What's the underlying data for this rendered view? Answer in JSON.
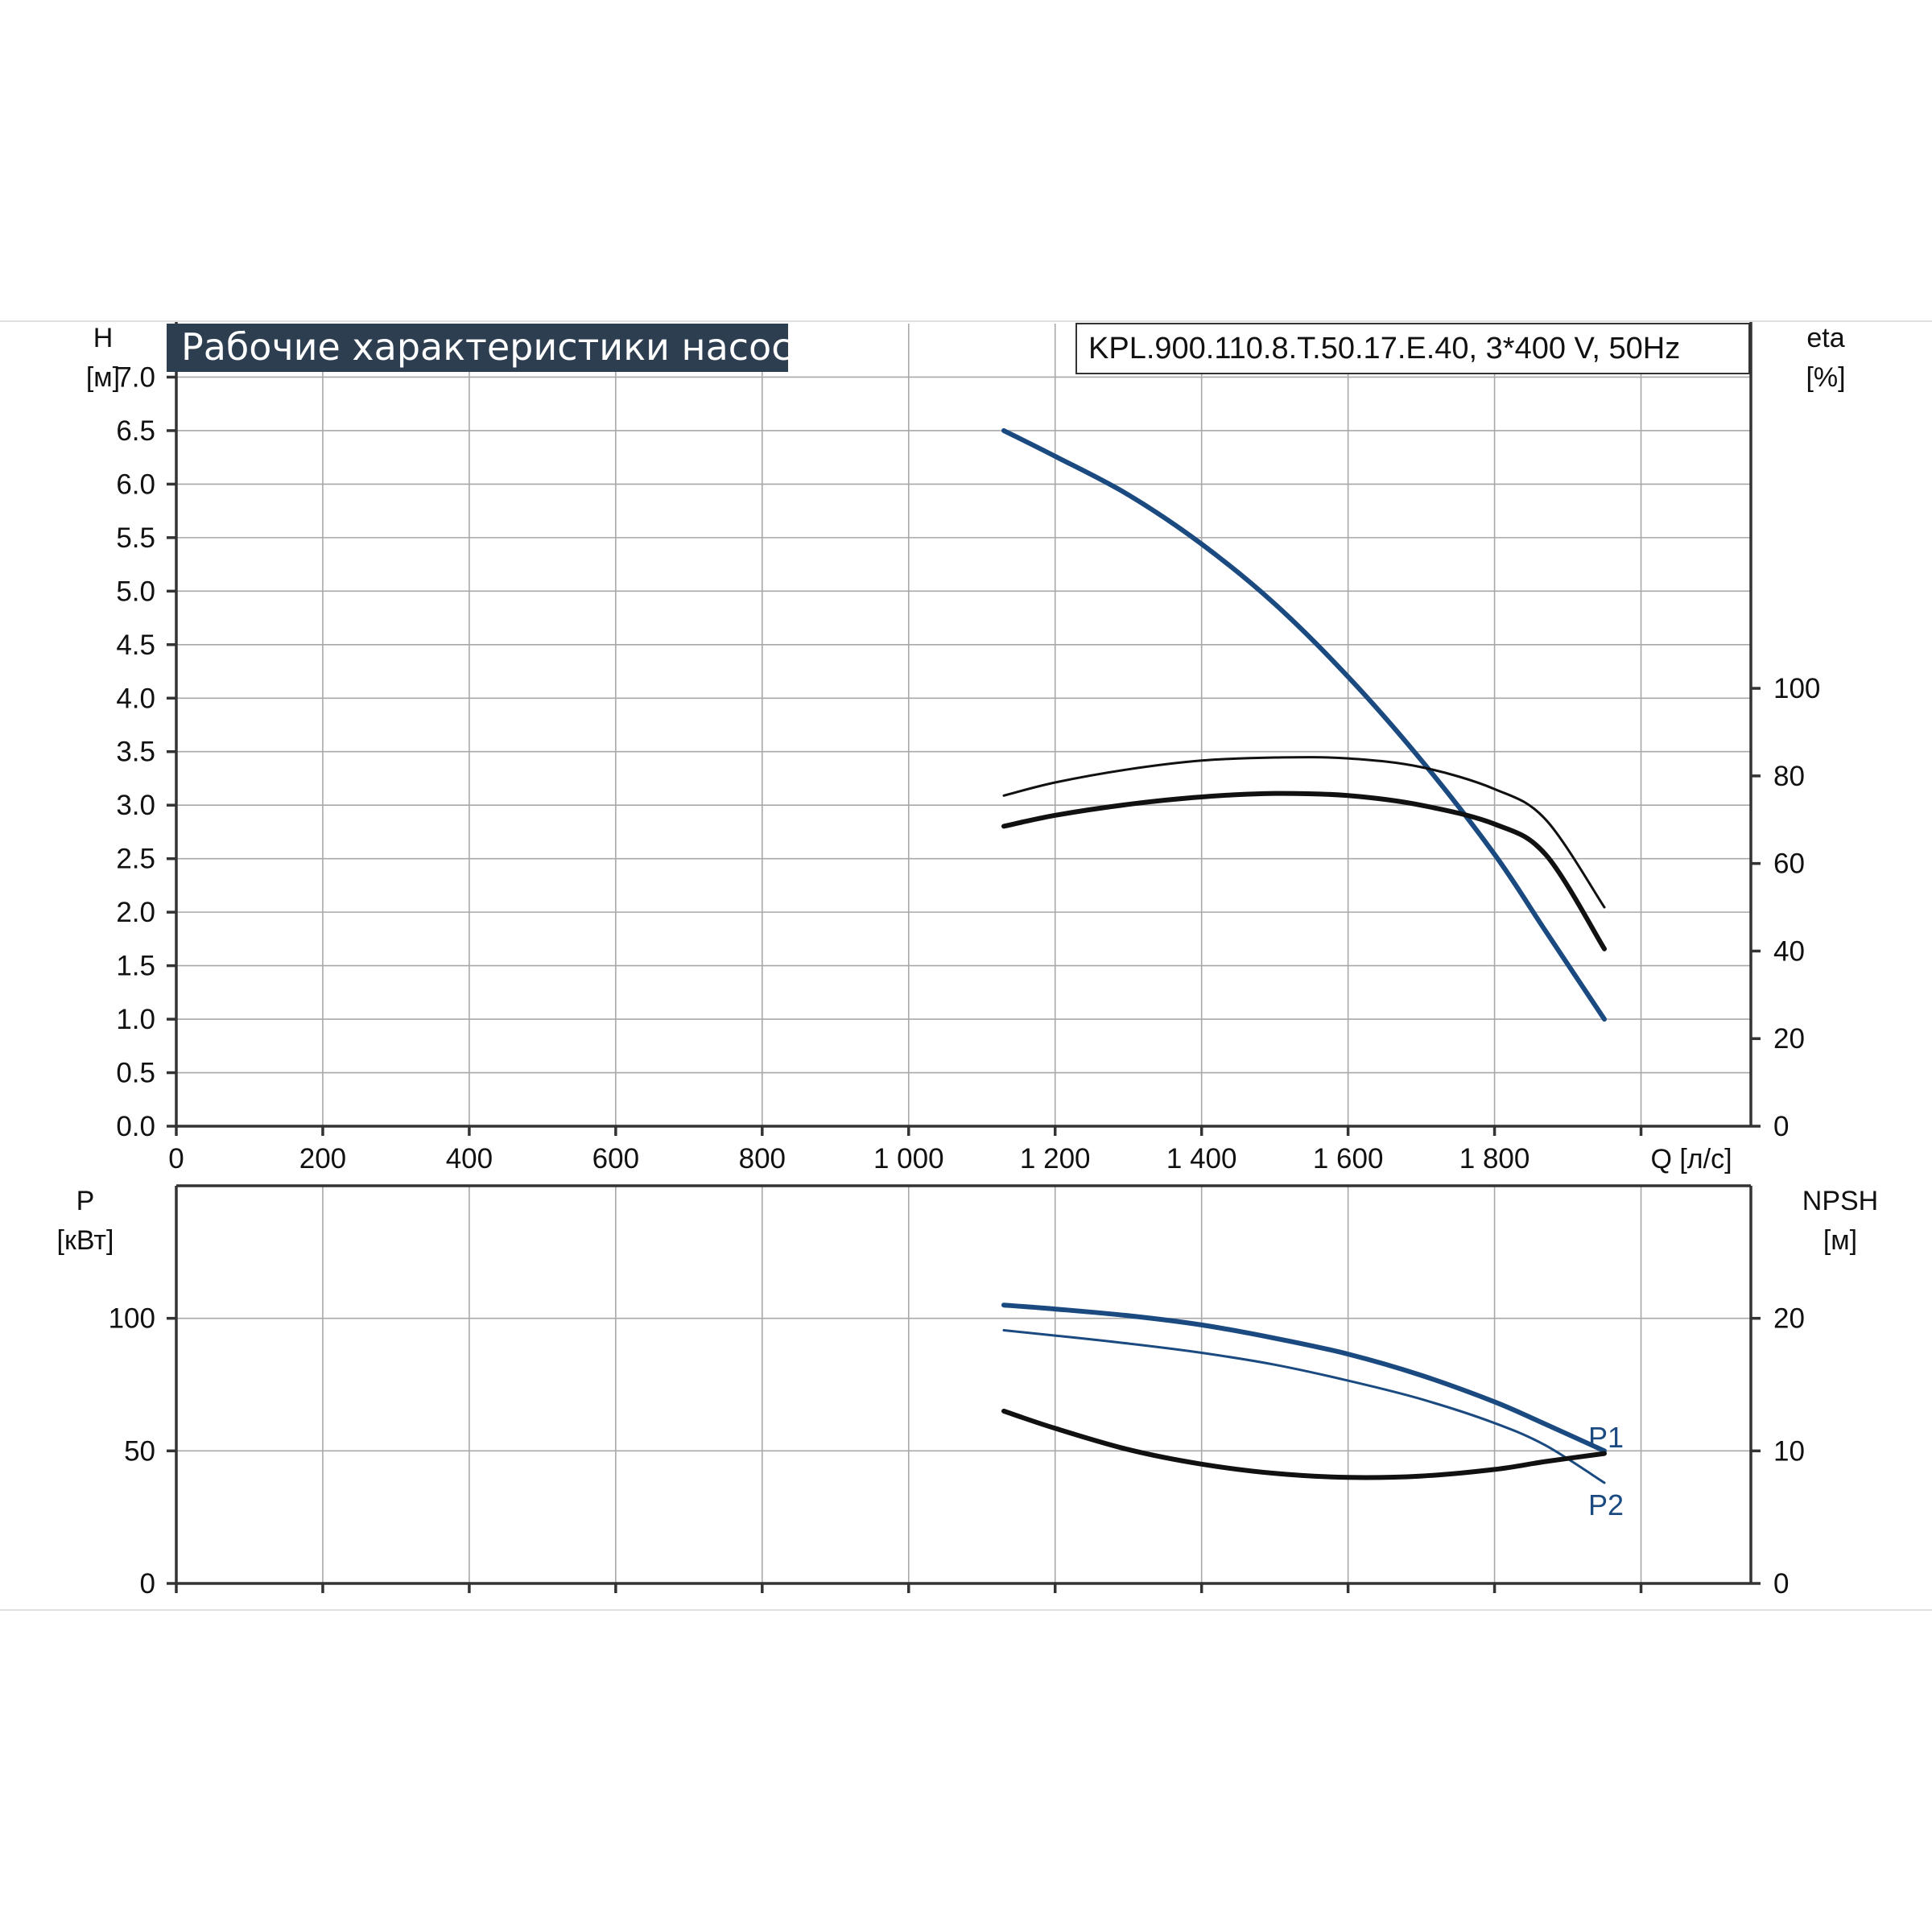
{
  "chart_data": [
    {
      "type": "line",
      "title": "Рабочие характеристики насоса",
      "subtitle": "KPL.900.110.8.T.50.17.E.40, 3*400 V, 50Hz",
      "xlabel": "Q [л/с]",
      "x_ticks": [
        "0",
        "200",
        "400",
        "600",
        "800",
        "1 000",
        "1 200",
        "1 400",
        "1 600",
        "1 800"
      ],
      "xlim": [
        0,
        2150
      ],
      "ylabel_left": {
        "name": "H",
        "unit": "[м]"
      },
      "ylim_left": [
        0,
        7.5
      ],
      "y_left_ticks": [
        "0.0",
        "0.5",
        "1.0",
        "1.5",
        "2.0",
        "2.5",
        "3.0",
        "3.5",
        "4.0",
        "4.5",
        "5.0",
        "5.5",
        "6.0",
        "6.5",
        "7.0"
      ],
      "ylabel_right": {
        "name": "eta",
        "unit": "[%]"
      },
      "ylim_right": [
        0,
        183.3
      ],
      "y_right_ticks": [
        "0",
        "20",
        "40",
        "60",
        "80",
        "100"
      ],
      "grid": true,
      "series": [
        {
          "axis": "left",
          "color": "#1a4a80",
          "width": 6,
          "points": [
            [
              1130,
              6.5
            ],
            [
              1200,
              6.26
            ],
            [
              1300,
              5.9
            ],
            [
              1400,
              5.44
            ],
            [
              1500,
              4.88
            ],
            [
              1600,
              4.2
            ],
            [
              1700,
              3.42
            ],
            [
              1800,
              2.54
            ],
            [
              1870,
              1.82
            ],
            [
              1950,
              1.0
            ]
          ]
        },
        {
          "axis": "right",
          "color": "#111111",
          "width": 3,
          "points": [
            [
              1130,
              75.5
            ],
            [
              1200,
              78.5
            ],
            [
              1300,
              81.5
            ],
            [
              1400,
              83.5
            ],
            [
              1500,
              84.2
            ],
            [
              1600,
              84.0
            ],
            [
              1700,
              82.0
            ],
            [
              1800,
              77.0
            ],
            [
              1870,
              70.0
            ],
            [
              1950,
              50.0
            ]
          ]
        },
        {
          "axis": "right",
          "color": "#111111",
          "width": 6,
          "points": [
            [
              1130,
              68.5
            ],
            [
              1200,
              71.0
            ],
            [
              1300,
              73.5
            ],
            [
              1400,
              75.2
            ],
            [
              1500,
              76.0
            ],
            [
              1600,
              75.5
            ],
            [
              1700,
              73.3
            ],
            [
              1800,
              69.0
            ],
            [
              1870,
              62.0
            ],
            [
              1950,
              40.5
            ]
          ]
        }
      ]
    },
    {
      "type": "line",
      "xlim": [
        0,
        2150
      ],
      "ylabel_left": {
        "name": "P",
        "unit": "[кВт]"
      },
      "ylim_left": [
        0,
        150
      ],
      "y_left_ticks": [
        "0",
        "50",
        "100"
      ],
      "ylabel_right": {
        "name": "NPSH",
        "unit": "[м]"
      },
      "ylim_right": [
        0,
        30
      ],
      "y_right_ticks": [
        "0",
        "10",
        "20"
      ],
      "grid": true,
      "series": [
        {
          "name": "P1",
          "axis": "left",
          "color": "#1a4a80",
          "width": 6,
          "points": [
            [
              1130,
              105
            ],
            [
              1200,
              103.5
            ],
            [
              1300,
              101
            ],
            [
              1400,
              97.5
            ],
            [
              1500,
              92.5
            ],
            [
              1600,
              86.5
            ],
            [
              1700,
              78.5
            ],
            [
              1800,
              68.5
            ],
            [
              1870,
              60
            ],
            [
              1950,
              50
            ]
          ]
        },
        {
          "name": "P2",
          "axis": "left",
          "color": "#1a4a80",
          "width": 3,
          "points": [
            [
              1130,
              95.5
            ],
            [
              1200,
              93.5
            ],
            [
              1300,
              90.5
            ],
            [
              1400,
              87
            ],
            [
              1500,
              82.5
            ],
            [
              1600,
              76.5
            ],
            [
              1700,
              69.5
            ],
            [
              1800,
              60.5
            ],
            [
              1870,
              52
            ],
            [
              1950,
              38
            ]
          ]
        },
        {
          "axis": "right",
          "color": "#111111",
          "width": 6,
          "points": [
            [
              1130,
              13.0
            ],
            [
              1200,
              11.7
            ],
            [
              1300,
              10.1
            ],
            [
              1400,
              9.0
            ],
            [
              1500,
              8.3
            ],
            [
              1600,
              8.0
            ],
            [
              1700,
              8.1
            ],
            [
              1800,
              8.6
            ],
            [
              1870,
              9.2
            ],
            [
              1950,
              9.8
            ]
          ]
        }
      ]
    }
  ]
}
